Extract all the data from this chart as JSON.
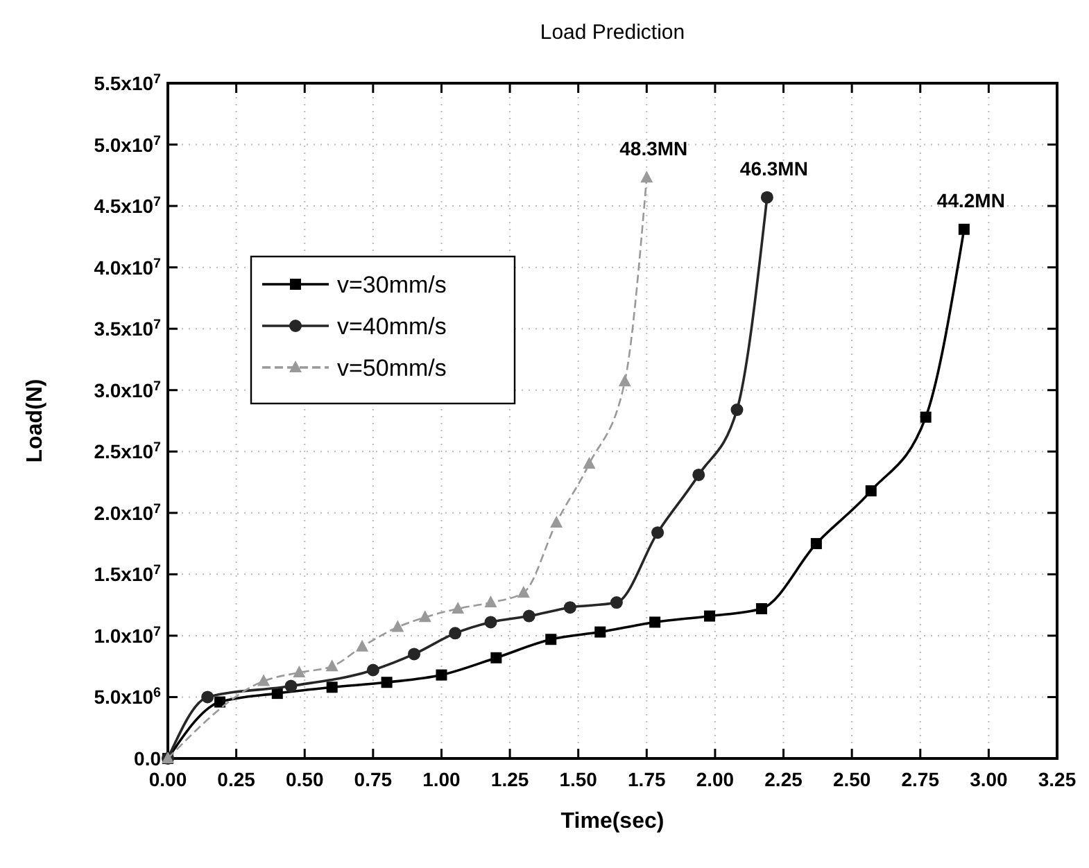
{
  "chart_data": {
    "type": "line",
    "title": "Load Prediction",
    "xlabel": "Time(sec)",
    "ylabel": "Load(N)",
    "xlim": [
      0,
      3.25
    ],
    "ylim": [
      0,
      55000000
    ],
    "xticks": [
      {
        "value": 0,
        "label": "0.00"
      },
      {
        "value": 0.25,
        "label": "0.25"
      },
      {
        "value": 0.5,
        "label": "0.50"
      },
      {
        "value": 0.75,
        "label": "0.75"
      },
      {
        "value": 1,
        "label": "1.00"
      },
      {
        "value": 1.25,
        "label": "1.25"
      },
      {
        "value": 1.5,
        "label": "1.50"
      },
      {
        "value": 1.75,
        "label": "1.75"
      },
      {
        "value": 2,
        "label": "2.00"
      },
      {
        "value": 2.25,
        "label": "2.25"
      },
      {
        "value": 2.5,
        "label": "2.50"
      },
      {
        "value": 2.75,
        "label": "2.75"
      },
      {
        "value": 3,
        "label": "3.00"
      },
      {
        "value": 3.25,
        "label": "3.25"
      }
    ],
    "yticks": [
      {
        "value": 0,
        "label": "0.0"
      },
      {
        "value": 5000000,
        "label": "5.0x10$^{6}$"
      },
      {
        "value": 10000000,
        "label": "1.0x10$^{7}$"
      },
      {
        "value": 15000000,
        "label": "1.5x10$^{7}$"
      },
      {
        "value": 20000000,
        "label": "2.0x10$^{7}$"
      },
      {
        "value": 25000000,
        "label": "2.5x10$^{7}$"
      },
      {
        "value": 30000000,
        "label": "3.0x10$^{7}$"
      },
      {
        "value": 35000000,
        "label": "3.5x10$^{7}$"
      },
      {
        "value": 40000000,
        "label": "4.0x10$^{7}$"
      },
      {
        "value": 45000000,
        "label": "4.5x10$^{7}$"
      },
      {
        "value": 50000000,
        "label": "5.0x10$^{7}$"
      },
      {
        "value": 55000000,
        "label": "5.5x10$^{7}$"
      }
    ],
    "grid": true,
    "legend": "top left",
    "series": [
      {
        "name": "v=30mm/s",
        "color": "#000000",
        "marker": "square",
        "line_style": "solid",
        "x": [
          0,
          0.19,
          0.4,
          0.6,
          0.8,
          1.0,
          1.2,
          1.4,
          1.58,
          1.78,
          1.98,
          2.17,
          2.37,
          2.57,
          2.77,
          2.91
        ],
        "values": [
          0,
          4600000,
          5300000,
          5800000,
          6200000,
          6800000,
          8200000,
          9700000,
          10300000,
          11100000,
          11600000,
          12200000,
          17500000,
          21800000,
          27800000,
          43100000
        ]
      },
      {
        "name": "v=40mm/s",
        "color": "#262626",
        "marker": "circle",
        "line_style": "solid",
        "x": [
          0,
          0.145,
          0.45,
          0.75,
          0.9,
          1.05,
          1.18,
          1.32,
          1.47,
          1.64,
          1.79,
          1.94,
          2.08,
          2.19
        ],
        "values": [
          0,
          5000000,
          5900000,
          7200000,
          8500000,
          10200000,
          11100000,
          11600000,
          12300000,
          12700000,
          18400000,
          23100000,
          28400000,
          45700000
        ]
      },
      {
        "name": "v=50mm/s",
        "color": "#999999",
        "marker": "triangle",
        "line_style": "dashed",
        "x": [
          0,
          0.35,
          0.48,
          0.6,
          0.71,
          0.84,
          0.94,
          1.06,
          1.18,
          1.3,
          1.42,
          1.54,
          1.67,
          1.75
        ],
        "values": [
          0,
          6300000,
          7000000,
          7500000,
          9100000,
          10700000,
          11500000,
          12200000,
          12700000,
          13500000,
          19200000,
          24000000,
          30700000,
          47300000
        ]
      }
    ],
    "annotations": [
      {
        "text": "48.3MN",
        "x": 1.75,
        "y": 47300000
      },
      {
        "text": "46.3MN",
        "x": 2.19,
        "y": 45700000
      },
      {
        "text": "44.2MN",
        "x": 2.91,
        "y": 43100000
      }
    ]
  }
}
